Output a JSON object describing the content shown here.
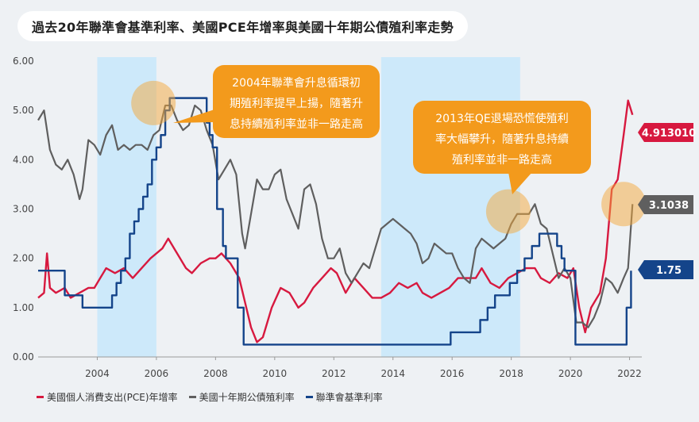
{
  "title": "過去20年聯準會基準利率、美國PCE年增率與美國十年期公債殖利率走勢",
  "chart_data": {
    "type": "line",
    "xlim": [
      2002.0,
      2022.2
    ],
    "ylim": [
      0,
      6
    ],
    "yticks": [
      "6.00",
      "5.00",
      "4.00",
      "3.00",
      "2.00",
      "1.00",
      "0.00"
    ],
    "xticks": [
      "2004",
      "2006",
      "2008",
      "2010",
      "2012",
      "2014",
      "2016",
      "2018",
      "2020",
      "2022"
    ],
    "shaded_periods": [
      [
        2004.0,
        2006.0
      ],
      [
        2013.6,
        2018.3
      ]
    ],
    "series": [
      {
        "name": "美國個人消費支出(PCE)年增率",
        "color": "#d7193f",
        "x": [
          2002.0,
          2002.2,
          2002.3,
          2002.4,
          2002.6,
          2002.9,
          2003.1,
          2003.4,
          2003.7,
          2003.9,
          2004.1,
          2004.3,
          2004.6,
          2004.9,
          2005.2,
          2005.5,
          2005.8,
          2006.0,
          2006.2,
          2006.4,
          2006.6,
          2006.8,
          2007.0,
          2007.2,
          2007.5,
          2007.8,
          2008.0,
          2008.2,
          2008.5,
          2008.8,
          2009.0,
          2009.2,
          2009.4,
          2009.6,
          2009.9,
          2010.2,
          2010.5,
          2010.8,
          2011.0,
          2011.3,
          2011.6,
          2011.9,
          2012.1,
          2012.4,
          2012.7,
          2013.0,
          2013.3,
          2013.6,
          2013.9,
          2014.2,
          2014.5,
          2014.8,
          2015.0,
          2015.3,
          2015.6,
          2015.9,
          2016.2,
          2016.5,
          2016.8,
          2017.0,
          2017.3,
          2017.6,
          2017.9,
          2018.2,
          2018.5,
          2018.8,
          2019.0,
          2019.3,
          2019.6,
          2019.9,
          2020.1,
          2020.3,
          2020.5,
          2020.7,
          2021.0,
          2021.2,
          2021.4,
          2021.6,
          2021.8,
          2021.95,
          2022.1
        ],
        "y": [
          1.2,
          1.3,
          2.1,
          1.4,
          1.3,
          1.4,
          1.2,
          1.3,
          1.4,
          1.4,
          1.6,
          1.8,
          1.7,
          1.8,
          1.6,
          1.8,
          2.0,
          2.1,
          2.2,
          2.4,
          2.2,
          2.0,
          1.8,
          1.7,
          1.9,
          2.0,
          2.0,
          2.1,
          1.9,
          1.6,
          1.1,
          0.6,
          0.3,
          0.4,
          1.0,
          1.4,
          1.3,
          1.0,
          1.1,
          1.4,
          1.6,
          1.8,
          1.7,
          1.3,
          1.6,
          1.4,
          1.2,
          1.2,
          1.3,
          1.5,
          1.4,
          1.5,
          1.3,
          1.2,
          1.3,
          1.4,
          1.6,
          1.6,
          1.6,
          1.8,
          1.5,
          1.4,
          1.6,
          1.7,
          1.8,
          1.8,
          1.6,
          1.5,
          1.7,
          1.6,
          1.8,
          1.0,
          0.5,
          1.0,
          1.3,
          2.0,
          3.4,
          3.6,
          4.5,
          5.2,
          4.91
        ]
      },
      {
        "name": "美國十年期公債殖利率",
        "color": "#5f5f5f",
        "x": [
          2002.0,
          2002.2,
          2002.4,
          2002.6,
          2002.8,
          2003.0,
          2003.2,
          2003.4,
          2003.5,
          2003.7,
          2003.9,
          2004.1,
          2004.3,
          2004.5,
          2004.7,
          2004.9,
          2005.1,
          2005.3,
          2005.5,
          2005.7,
          2005.9,
          2006.1,
          2006.3,
          2006.5,
          2006.7,
          2006.9,
          2007.1,
          2007.3,
          2007.5,
          2007.7,
          2007.9,
          2008.1,
          2008.3,
          2008.5,
          2008.7,
          2008.9,
          2009.0,
          2009.2,
          2009.4,
          2009.6,
          2009.8,
          2010.0,
          2010.2,
          2010.4,
          2010.6,
          2010.8,
          2011.0,
          2011.2,
          2011.4,
          2011.6,
          2011.8,
          2012.0,
          2012.2,
          2012.4,
          2012.6,
          2012.8,
          2013.0,
          2013.2,
          2013.4,
          2013.6,
          2013.8,
          2014.0,
          2014.2,
          2014.4,
          2014.6,
          2014.8,
          2015.0,
          2015.2,
          2015.4,
          2015.6,
          2015.8,
          2016.0,
          2016.2,
          2016.4,
          2016.6,
          2016.8,
          2017.0,
          2017.2,
          2017.4,
          2017.6,
          2017.8,
          2018.0,
          2018.2,
          2018.4,
          2018.6,
          2018.8,
          2019.0,
          2019.2,
          2019.4,
          2019.6,
          2019.8,
          2020.0,
          2020.2,
          2020.4,
          2020.6,
          2020.8,
          2021.0,
          2021.2,
          2021.4,
          2021.6,
          2021.8,
          2021.95,
          2022.1
        ],
        "y": [
          4.8,
          5.0,
          4.2,
          3.9,
          3.8,
          4.0,
          3.7,
          3.2,
          3.4,
          4.4,
          4.3,
          4.1,
          4.5,
          4.7,
          4.2,
          4.3,
          4.2,
          4.3,
          4.3,
          4.2,
          4.5,
          4.6,
          5.1,
          5.1,
          4.8,
          4.6,
          4.7,
          5.1,
          5.0,
          4.6,
          4.3,
          3.6,
          3.8,
          4.0,
          3.7,
          2.5,
          2.2,
          2.9,
          3.6,
          3.4,
          3.4,
          3.7,
          3.8,
          3.2,
          2.9,
          2.6,
          3.4,
          3.5,
          3.1,
          2.4,
          2.0,
          2.0,
          2.2,
          1.7,
          1.5,
          1.7,
          1.9,
          1.8,
          2.2,
          2.6,
          2.7,
          2.8,
          2.7,
          2.6,
          2.5,
          2.3,
          1.9,
          2.0,
          2.3,
          2.2,
          2.1,
          2.1,
          1.8,
          1.6,
          1.5,
          2.2,
          2.4,
          2.3,
          2.2,
          2.3,
          2.4,
          2.7,
          2.9,
          2.9,
          2.9,
          3.1,
          2.7,
          2.6,
          2.1,
          1.6,
          1.8,
          1.6,
          0.7,
          0.7,
          0.6,
          0.8,
          1.1,
          1.6,
          1.5,
          1.3,
          1.6,
          1.8,
          3.1
        ]
      },
      {
        "name": "聯準會基準利率",
        "color": "#14448a",
        "step": true,
        "x": [
          2002.0,
          2002.9,
          2003.5,
          2004.5,
          2004.65,
          2004.8,
          2004.95,
          2005.1,
          2005.25,
          2005.4,
          2005.55,
          2005.7,
          2005.85,
          2006.0,
          2006.15,
          2006.3,
          2006.45,
          2007.7,
          2007.8,
          2007.9,
          2008.05,
          2008.25,
          2008.35,
          2008.75,
          2008.95,
          2015.95,
          2016.95,
          2017.2,
          2017.45,
          2017.95,
          2018.2,
          2018.45,
          2018.7,
          2018.95,
          2019.55,
          2019.7,
          2019.8,
          2020.17,
          2021.9,
          2022.05
        ],
        "y": [
          1.75,
          1.25,
          1.0,
          1.25,
          1.5,
          1.75,
          2.0,
          2.5,
          2.75,
          3.0,
          3.25,
          3.5,
          4.0,
          4.25,
          4.5,
          5.0,
          5.25,
          4.75,
          4.5,
          4.25,
          3.0,
          2.25,
          2.0,
          1.0,
          0.25,
          0.5,
          0.75,
          1.0,
          1.25,
          1.5,
          1.75,
          2.0,
          2.25,
          2.5,
          2.25,
          2.0,
          1.75,
          0.25,
          1.0,
          1.75
        ]
      }
    ],
    "end_labels": [
      {
        "series": 0,
        "text": "4.913010",
        "color": "#d7193f"
      },
      {
        "series": 1,
        "text": "3.1038",
        "color": "#5f5f5f"
      },
      {
        "series": 2,
        "text": "1.75",
        "color": "#14448a"
      }
    ],
    "annotations": [
      {
        "lines": [
          "2004年聯準會升息循環初",
          "期殖利率提早上揚，隨著升",
          "息持續殖利率並非一路走高"
        ],
        "at": [
          2006.0,
          5.0
        ]
      },
      {
        "lines": [
          "2013年QE退場恐慌使殖利",
          "率大幅攀升，隨著升息持續",
          "殖利率並非一路走高"
        ],
        "at": [
          2017.9,
          2.95
        ]
      }
    ],
    "highlight_circles": [
      [
        2005.9,
        5.15
      ],
      [
        2017.9,
        2.95
      ],
      [
        2021.8,
        3.1
      ]
    ]
  }
}
